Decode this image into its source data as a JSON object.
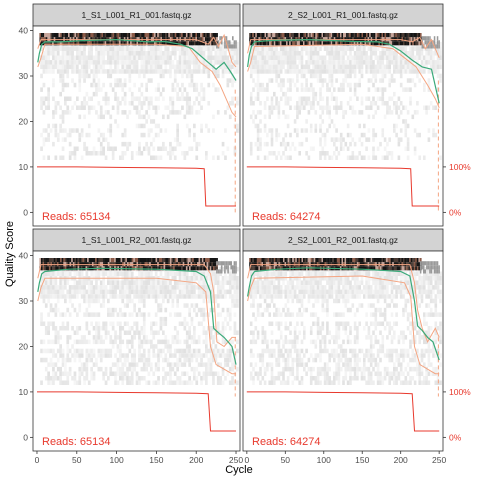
{
  "figure": {
    "xlabel": "Cycle",
    "ylabel": "Quality Score"
  },
  "chart_data": {
    "type": "heatmap",
    "xlim": [
      -5,
      255
    ],
    "ylim": [
      -3,
      41
    ],
    "x_ticks": [
      0,
      50,
      100,
      150,
      200,
      250
    ],
    "y_ticks": [
      0,
      10,
      20,
      30,
      40
    ],
    "pct_ticks": [
      "100%",
      "0%"
    ],
    "grid": false,
    "colors": {
      "mean": "#3aaa7a",
      "quartile": "#f4a582",
      "cumulative": "#e8392d",
      "reads_label": "#e8392d",
      "strip": "#d3d3d3",
      "heat_dark": "#1c1c1c"
    },
    "panels": [
      {
        "title": "1_S1_L001_R1_001.fastq.gz",
        "reads_label": "Reads: 65134",
        "mean": [
          [
            1,
            33
          ],
          [
            3,
            35
          ],
          [
            6,
            37
          ],
          [
            10,
            37.5
          ],
          [
            30,
            37.5
          ],
          [
            60,
            37.8
          ],
          [
            100,
            38
          ],
          [
            140,
            37.5
          ],
          [
            160,
            37.6
          ],
          [
            180,
            37
          ],
          [
            195,
            36
          ],
          [
            205,
            34.5
          ],
          [
            215,
            33
          ],
          [
            225,
            31.5
          ],
          [
            235,
            33
          ],
          [
            243,
            31
          ],
          [
            250,
            29
          ]
        ],
        "q75": [
          [
            1,
            36
          ],
          [
            5,
            38
          ],
          [
            30,
            38
          ],
          [
            200,
            38
          ],
          [
            215,
            37
          ],
          [
            222,
            38.5
          ],
          [
            228,
            36.5
          ],
          [
            235,
            39
          ],
          [
            240,
            36
          ],
          [
            245,
            33
          ],
          [
            250,
            32
          ]
        ],
        "q25": [
          [
            1,
            32
          ],
          [
            5,
            34
          ],
          [
            10,
            37
          ],
          [
            150,
            37
          ],
          [
            190,
            36.5
          ],
          [
            205,
            33
          ],
          [
            220,
            31
          ],
          [
            230,
            28
          ],
          [
            240,
            24
          ],
          [
            245,
            22
          ],
          [
            250,
            21
          ]
        ],
        "cumulative": [
          [
            0,
            10
          ],
          [
            50,
            10
          ],
          [
            100,
            9.9
          ],
          [
            150,
            9.8
          ],
          [
            200,
            9.7
          ],
          [
            210,
            9.6
          ],
          [
            212,
            1.4
          ],
          [
            250,
            1.4
          ]
        ],
        "dash": {
          "x": 249,
          "from": 27,
          "to": 0
        }
      },
      {
        "title": "2_S2_L001_R1_001.fastq.gz",
        "reads_label": "Reads: 64274",
        "mean": [
          [
            1,
            32
          ],
          [
            3,
            34.5
          ],
          [
            6,
            36.5
          ],
          [
            10,
            37.5
          ],
          [
            30,
            37.8
          ],
          [
            80,
            38
          ],
          [
            140,
            37.6
          ],
          [
            170,
            37.5
          ],
          [
            185,
            37
          ],
          [
            200,
            35.5
          ],
          [
            215,
            33.5
          ],
          [
            228,
            32
          ],
          [
            240,
            31.5
          ],
          [
            250,
            24
          ]
        ],
        "q75": [
          [
            1,
            35
          ],
          [
            5,
            38
          ],
          [
            30,
            38
          ],
          [
            200,
            38
          ],
          [
            215,
            37.5
          ],
          [
            225,
            38.5
          ],
          [
            232,
            36
          ],
          [
            240,
            38
          ],
          [
            245,
            36
          ],
          [
            250,
            34
          ]
        ],
        "q25": [
          [
            1,
            31
          ],
          [
            5,
            33
          ],
          [
            10,
            36.5
          ],
          [
            150,
            37
          ],
          [
            190,
            36
          ],
          [
            205,
            34
          ],
          [
            220,
            32
          ],
          [
            235,
            28
          ],
          [
            245,
            25
          ],
          [
            250,
            23
          ]
        ],
        "cumulative": [
          [
            0,
            10
          ],
          [
            50,
            10
          ],
          [
            100,
            9.9
          ],
          [
            150,
            9.8
          ],
          [
            200,
            9.7
          ],
          [
            213,
            9.6
          ],
          [
            215,
            1.4
          ],
          [
            250,
            1.4
          ]
        ],
        "dash": {
          "x": 249,
          "from": 29,
          "to": 0
        }
      },
      {
        "title": "1_S1_L001_R2_001.fastq.gz",
        "reads_label": "Reads: 65134",
        "mean": [
          [
            1,
            32
          ],
          [
            3,
            34
          ],
          [
            6,
            36
          ],
          [
            10,
            36.5
          ],
          [
            40,
            37
          ],
          [
            80,
            37.2
          ],
          [
            150,
            37
          ],
          [
            200,
            36.5
          ],
          [
            210,
            35.5
          ],
          [
            218,
            32
          ],
          [
            222,
            24
          ],
          [
            228,
            23
          ],
          [
            235,
            22
          ],
          [
            240,
            21
          ],
          [
            245,
            20
          ],
          [
            250,
            16
          ]
        ],
        "q75": [
          [
            1,
            35
          ],
          [
            5,
            38
          ],
          [
            30,
            38
          ],
          [
            210,
            38
          ],
          [
            218,
            36
          ],
          [
            222,
            32
          ],
          [
            226,
            21
          ],
          [
            235,
            20
          ],
          [
            245,
            22
          ],
          [
            250,
            22
          ]
        ],
        "q25": [
          [
            1,
            30
          ],
          [
            5,
            33
          ],
          [
            10,
            35
          ],
          [
            150,
            35
          ],
          [
            200,
            34
          ],
          [
            212,
            32
          ],
          [
            218,
            20
          ],
          [
            225,
            16
          ],
          [
            235,
            15
          ],
          [
            245,
            14
          ],
          [
            250,
            14
          ]
        ],
        "cumulative": [
          [
            0,
            10
          ],
          [
            50,
            10
          ],
          [
            100,
            9.9
          ],
          [
            150,
            9.8
          ],
          [
            200,
            9.7
          ],
          [
            215,
            9.6
          ],
          [
            218,
            1.4
          ],
          [
            250,
            1.4
          ]
        ],
        "dash": {
          "x": 249,
          "from": 22,
          "to": 9
        }
      },
      {
        "title": "2_S2_L001_R2_001.fastq.gz",
        "reads_label": "Reads: 64274",
        "mean": [
          [
            1,
            31
          ],
          [
            3,
            33
          ],
          [
            6,
            35.5
          ],
          [
            10,
            36.5
          ],
          [
            40,
            37
          ],
          [
            80,
            37.3
          ],
          [
            150,
            37
          ],
          [
            200,
            36.5
          ],
          [
            212,
            35.5
          ],
          [
            218,
            30
          ],
          [
            222,
            24.5
          ],
          [
            228,
            23.5
          ],
          [
            235,
            22
          ],
          [
            242,
            21
          ],
          [
            250,
            17
          ]
        ],
        "q75": [
          [
            1,
            35
          ],
          [
            5,
            38
          ],
          [
            30,
            38
          ],
          [
            212,
            38
          ],
          [
            218,
            34
          ],
          [
            222,
            28
          ],
          [
            228,
            24
          ],
          [
            235,
            21
          ],
          [
            245,
            24
          ],
          [
            250,
            22
          ]
        ],
        "q25": [
          [
            1,
            30
          ],
          [
            5,
            33
          ],
          [
            10,
            35
          ],
          [
            150,
            35.5
          ],
          [
            205,
            34
          ],
          [
            213,
            31
          ],
          [
            218,
            20
          ],
          [
            225,
            16
          ],
          [
            235,
            15
          ],
          [
            245,
            14
          ],
          [
            250,
            14
          ]
        ],
        "cumulative": [
          [
            0,
            10
          ],
          [
            50,
            10
          ],
          [
            100,
            9.9
          ],
          [
            150,
            9.8
          ],
          [
            200,
            9.7
          ],
          [
            215,
            9.6
          ],
          [
            218,
            1.4
          ],
          [
            250,
            1.4
          ]
        ],
        "dash": {
          "x": 249,
          "from": 22,
          "to": 9
        }
      }
    ]
  }
}
